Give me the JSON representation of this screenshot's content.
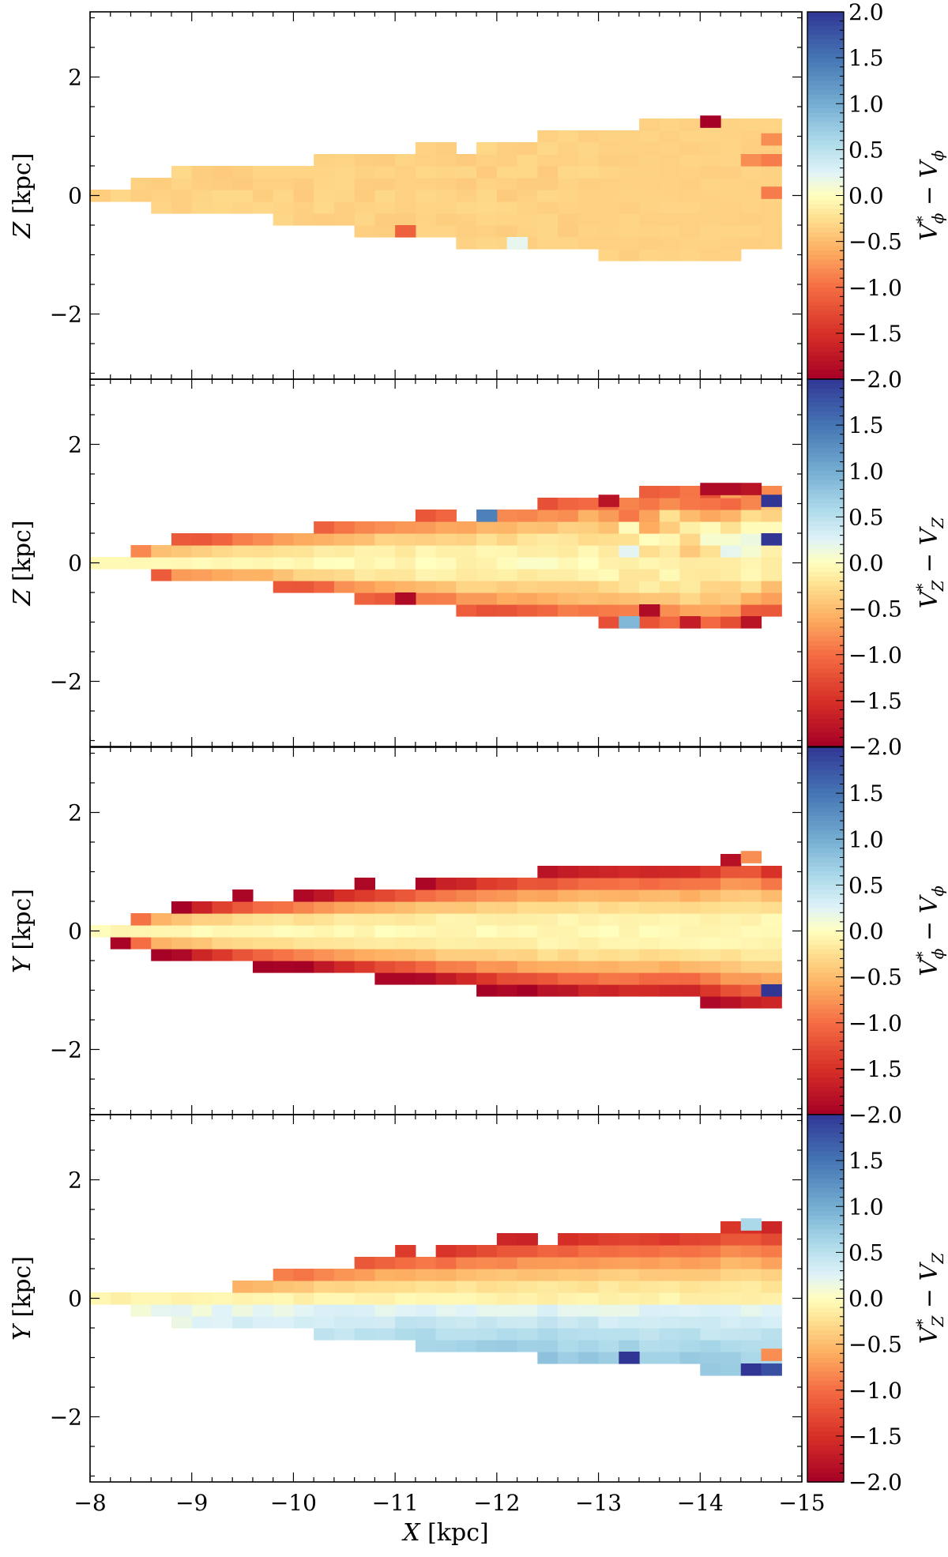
{
  "chart_data": {
    "type": "heatmap",
    "x_axis": {
      "label": "X [kpc]",
      "range": [
        -8,
        -15
      ],
      "ticks": [
        -8,
        -9,
        -10,
        -11,
        -12,
        -13,
        -14,
        -15
      ],
      "tick_labels": [
        "−8",
        "−9",
        "−10",
        "−11",
        "−12",
        "−13",
        "−14",
        "−15"
      ]
    },
    "bin_width_kpc": 0.2,
    "colormap": "RdYlBu",
    "colorbar_range": [
      -2.0,
      2.0
    ],
    "panels": [
      {
        "ylabel": "Z [kpc]",
        "ylim": [
          -3.1,
          3.1
        ],
        "yticks": [
          -2,
          0,
          2
        ],
        "ytick_labels": [
          "−2",
          "0",
          "2"
        ],
        "colorbar_label": "V*ϕ − Vϕ",
        "colorbar_ticks": [
          "2.0",
          "1.5",
          "1.0",
          "0.5",
          "0.0",
          "−0.5",
          "−1.0",
          "−1.5",
          "−2.0"
        ],
        "value_description": "mostly −0.3 to −0.5 with sparse outliers",
        "profile": [
          [
            -8.2,
            0.05
          ],
          [
            -8.6,
            0.3
          ],
          [
            -9.8,
            0.5
          ],
          [
            -11,
            0.75
          ],
          [
            -12,
            0.9
          ],
          [
            -13,
            1.1
          ],
          [
            -14,
            1.3
          ],
          [
            -14.8,
            1.3
          ]
        ],
        "profile_neg": [
          [
            -8.2,
            0.05
          ],
          [
            -8.6,
            0.05
          ],
          [
            -8.8,
            0.25
          ],
          [
            -9.8,
            0.3
          ],
          [
            -11,
            0.6
          ],
          [
            -12,
            0.8
          ],
          [
            -13,
            0.9
          ],
          [
            -14,
            1.1
          ],
          [
            -14.8,
            0.7
          ]
        ],
        "outliers": [
          [
            -14.1,
            1.25,
            -2.0
          ],
          [
            -11.1,
            -0.6,
            -1.1
          ],
          [
            -14.5,
            0.6,
            -0.8
          ],
          [
            -14.7,
            0.95,
            -0.8
          ],
          [
            -14.7,
            0.6,
            -0.9
          ],
          [
            -14.7,
            0.05,
            -0.9
          ],
          [
            -12.2,
            -0.8,
            0.2
          ]
        ]
      },
      {
        "ylabel": "Z [kpc]",
        "ylim": [
          -3.1,
          3.1
        ],
        "yticks": [
          -2,
          0,
          2
        ],
        "ytick_labels": [
          "−2",
          "0",
          "2"
        ],
        "colorbar_label": "V*Z − VZ",
        "colorbar_ticks": [
          "1.5",
          "1.0",
          "0.5",
          "0.0",
          "−0.5",
          "−1.0",
          "−1.5",
          "−2.0"
        ],
        "value_description": "near zero in midplane, negative at edges, mixed blue at far end",
        "profile": [
          [
            -8.2,
            0.05
          ],
          [
            -8.6,
            0.3
          ],
          [
            -9.8,
            0.5
          ],
          [
            -11,
            0.75
          ],
          [
            -12,
            0.9
          ],
          [
            -13,
            1.1
          ],
          [
            -14,
            1.3
          ],
          [
            -14.8,
            1.3
          ]
        ],
        "profile_neg": [
          [
            -8.2,
            0.05
          ],
          [
            -8.6,
            0.05
          ],
          [
            -8.8,
            0.25
          ],
          [
            -9.8,
            0.3
          ],
          [
            -11,
            0.6
          ],
          [
            -12,
            0.8
          ],
          [
            -13,
            0.9
          ],
          [
            -14,
            1.1
          ],
          [
            -14.8,
            0.7
          ]
        ],
        "outliers": [
          [
            -14.1,
            1.25,
            -1.9
          ],
          [
            -14.3,
            1.25,
            -1.9
          ],
          [
            -14.5,
            1.25,
            -1.8
          ],
          [
            -13.1,
            1.05,
            -1.8
          ],
          [
            -11.9,
            0.8,
            1.4
          ],
          [
            -14.7,
            1.05,
            2.0
          ],
          [
            -14.7,
            0.4,
            2.0
          ],
          [
            -11.1,
            -0.6,
            -1.9
          ],
          [
            -13.5,
            -0.8,
            -1.9
          ],
          [
            -13.9,
            -1.0,
            -1.7
          ],
          [
            -14.5,
            -1.0,
            -1.8
          ],
          [
            -13.3,
            -1.0,
            0.9
          ]
        ]
      },
      {
        "ylabel": "Y [kpc]",
        "ylim": [
          -3.1,
          3.1
        ],
        "yticks": [
          -2,
          0,
          2
        ],
        "ytick_labels": [
          "−2",
          "0",
          "2"
        ],
        "colorbar_label": "V*ϕ − Vϕ",
        "colorbar_ticks": [
          "1.5",
          "1.0",
          "0.5",
          "0.0",
          "−0.5",
          "−1.0",
          "−1.5",
          "−2.0"
        ],
        "value_description": "near zero at centre, strongly negative at edges",
        "profile": [
          [
            -8.2,
            0.05
          ],
          [
            -8.6,
            0.35
          ],
          [
            -9.8,
            0.55
          ],
          [
            -11,
            0.75
          ],
          [
            -12,
            0.95
          ],
          [
            -13,
            1.1
          ],
          [
            -14,
            1.1
          ],
          [
            -14.4,
            1.3
          ],
          [
            -14.8,
            1.1
          ]
        ],
        "profile_neg": [
          [
            -8.2,
            0.05
          ],
          [
            -8.6,
            0.35
          ],
          [
            -9.8,
            0.55
          ],
          [
            -11,
            0.75
          ],
          [
            -12,
            0.95
          ],
          [
            -13,
            1.1
          ],
          [
            -14,
            1.1
          ],
          [
            -14.4,
            1.3
          ],
          [
            -14.8,
            1.3
          ]
        ],
        "outliers": [
          [
            -14.7,
            -1.0,
            2.0
          ],
          [
            -14.5,
            1.25,
            -0.8
          ]
        ]
      },
      {
        "ylabel": "Y [kpc]",
        "ylim": [
          -3.1,
          3.1
        ],
        "yticks": [
          -2,
          0,
          2
        ],
        "ytick_labels": [
          "−2",
          "0",
          "2"
        ],
        "colorbar_label": "V*Z − VZ",
        "colorbar_ticks": [
          "1.5",
          "1.0",
          "0.5",
          "0.0",
          "−0.5",
          "−1.0",
          "−1.5",
          "−2.0"
        ],
        "value_description": "negative above midplane, positive (blue) below",
        "profile": [
          [
            -8.2,
            0.05
          ],
          [
            -8.6,
            0.05
          ],
          [
            -9.8,
            0.3
          ],
          [
            -11,
            0.75
          ],
          [
            -12,
            0.95
          ],
          [
            -13,
            1.1
          ],
          [
            -14,
            1.1
          ],
          [
            -14.4,
            1.3
          ],
          [
            -14.8,
            1.1
          ]
        ],
        "profile_neg": [
          [
            -8.2,
            0.05
          ],
          [
            -8.6,
            0.25
          ],
          [
            -9.8,
            0.45
          ],
          [
            -11,
            0.65
          ],
          [
            -12,
            0.85
          ],
          [
            -13,
            1.0
          ],
          [
            -14,
            1.1
          ],
          [
            -14.4,
            1.2
          ],
          [
            -14.8,
            1.3
          ]
        ],
        "outliers": [
          [
            -13.3,
            -1.0,
            2.0
          ],
          [
            -14.5,
            -1.2,
            2.0
          ],
          [
            -14.7,
            -1.2,
            1.8
          ],
          [
            -14.7,
            -0.95,
            -0.8
          ],
          [
            -14.5,
            1.25,
            0.6
          ]
        ]
      }
    ]
  }
}
